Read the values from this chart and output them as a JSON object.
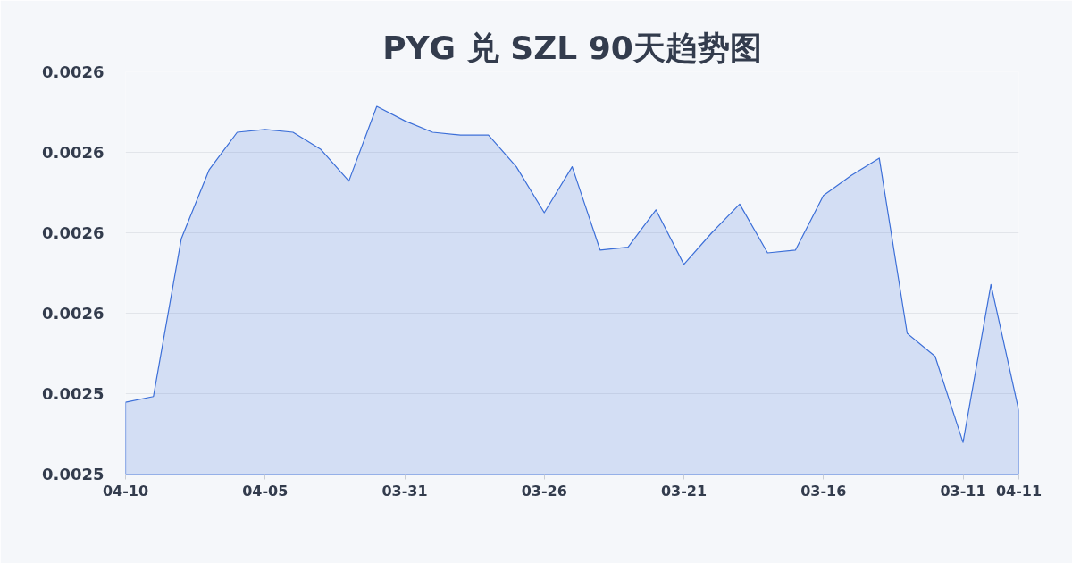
{
  "chart_data": {
    "type": "area",
    "title": "PYG 兑 SZL 90天趋势图",
    "categories": [
      "04-10",
      null,
      null,
      null,
      null,
      "04-05",
      null,
      null,
      null,
      null,
      "03-31",
      null,
      null,
      null,
      null,
      "03-26",
      null,
      null,
      null,
      null,
      "03-21",
      null,
      null,
      null,
      null,
      "03-16",
      null,
      null,
      null,
      null,
      "03-11",
      null,
      "04-11"
    ],
    "series": [
      {
        "color": "#3c6fd8",
        "values": [
          0.002525,
          0.002527,
          0.002582,
          0.002606,
          0.002619,
          0.00262,
          0.002619,
          0.002613,
          0.002602,
          0.002628,
          0.002623,
          0.002619,
          0.002618,
          0.002618,
          0.002607,
          0.002591,
          0.002607,
          0.002578,
          0.002579,
          0.002592,
          0.002573,
          0.002584,
          0.002594,
          0.002577,
          0.002578,
          0.002597,
          0.002604,
          0.00261,
          0.002549,
          0.002541,
          0.002511,
          0.002566,
          0.002522
        ]
      }
    ],
    "ylim": [
      0.0025,
      0.00264
    ],
    "yticks": [
      {
        "value": 0.0025,
        "label": "0.0025"
      },
      {
        "value": 0.002528,
        "label": "0.0025"
      },
      {
        "value": 0.002556,
        "label": "0.0026"
      },
      {
        "value": 0.002584,
        "label": "0.0026"
      },
      {
        "value": 0.002612,
        "label": "0.0026"
      },
      {
        "value": 0.00264,
        "label": "0.0026"
      }
    ],
    "grid": "y"
  }
}
